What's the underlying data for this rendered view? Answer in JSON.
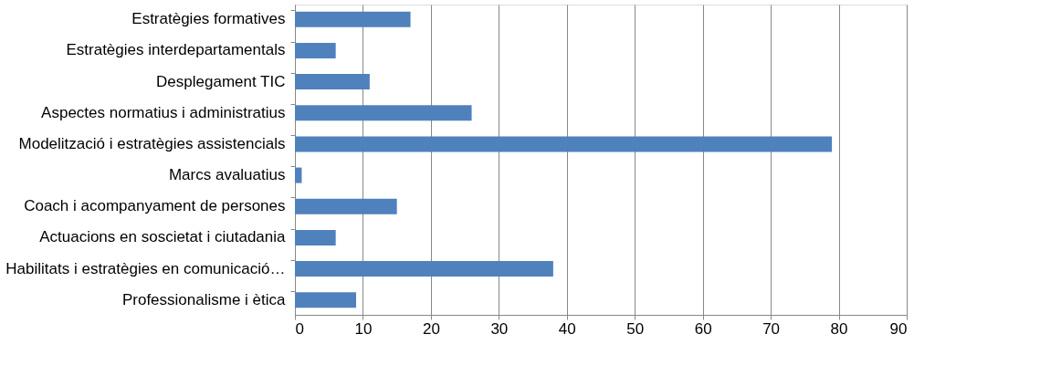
{
  "chart_data": {
    "type": "bar",
    "orientation": "horizontal",
    "categories": [
      "Estratègies formatives",
      "Estratègies interdepartamentals",
      "Desplegament TIC",
      "Aspectes normatius i administratius",
      "Modelització i estratègies assistencials",
      "Marcs avaluatius",
      "Coach i acompanyament de persones",
      "Actuacions en soscietat i ciutadania",
      "Habilitats i estratègies en comunicació…",
      "Professionalisme i ètica"
    ],
    "values": [
      17,
      6,
      11,
      26,
      79,
      1,
      15,
      6,
      38,
      9
    ],
    "color": "#4f81bd",
    "xlim": [
      0,
      90
    ],
    "xticks": [
      0,
      10,
      20,
      30,
      40,
      50,
      60,
      70,
      80,
      90
    ],
    "grid": "x"
  }
}
